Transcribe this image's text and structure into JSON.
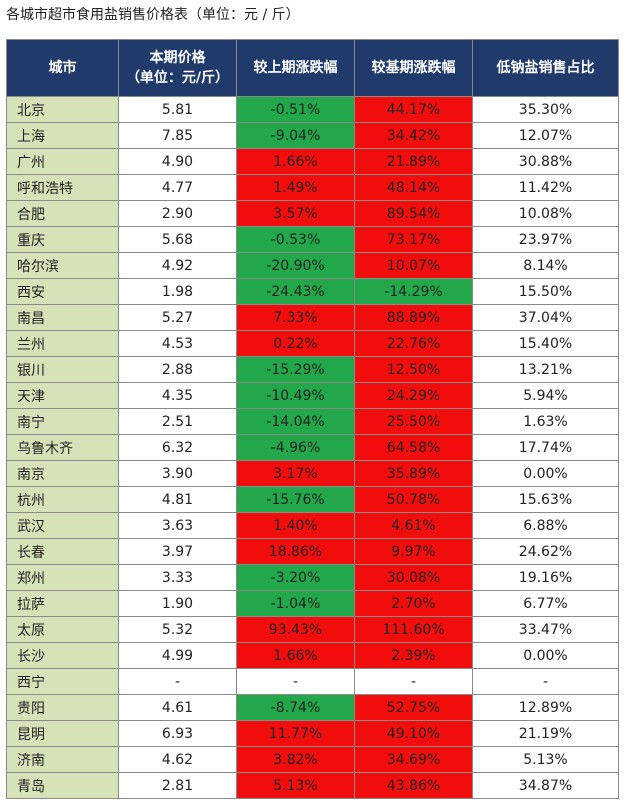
{
  "title": "各城市超市食用盐销售价格表（单位：元 / 斤）",
  "header": {
    "city": "城市",
    "price_line1": "本期价格",
    "price_line2": "（单位：元/斤）",
    "mom": "较上期涨跌幅",
    "yoy": "较基期涨跌幅",
    "lowsodium": "低钠盐销售占比"
  },
  "colors": {
    "header_bg": "#1f3a6b",
    "city_bg": "#d6e3b8",
    "positive": "#f20d0d",
    "negative": "#22a84a",
    "neutral": "#ffffff"
  },
  "rows": [
    {
      "city": "北京",
      "price": "5.81",
      "mom": "-0.51%",
      "yoy": "44.17%",
      "low": "35.30%"
    },
    {
      "city": "上海",
      "price": "7.85",
      "mom": "-9.04%",
      "yoy": "34.42%",
      "low": "12.07%"
    },
    {
      "city": "广州",
      "price": "4.90",
      "mom": "1.66%",
      "yoy": "21.89%",
      "low": "30.88%"
    },
    {
      "city": "呼和浩特",
      "price": "4.77",
      "mom": "1.49%",
      "yoy": "48.14%",
      "low": "11.42%"
    },
    {
      "city": "合肥",
      "price": "2.90",
      "mom": "3.57%",
      "yoy": "89.54%",
      "low": "10.08%"
    },
    {
      "city": "重庆",
      "price": "5.68",
      "mom": "-0.53%",
      "yoy": "73.17%",
      "low": "23.97%"
    },
    {
      "city": "哈尔滨",
      "price": "4.92",
      "mom": "-20.90%",
      "yoy": "10.07%",
      "low": "8.14%"
    },
    {
      "city": "西安",
      "price": "1.98",
      "mom": "-24.43%",
      "yoy": "-14.29%",
      "low": "15.50%"
    },
    {
      "city": "南昌",
      "price": "5.27",
      "mom": "7.33%",
      "yoy": "88.89%",
      "low": "37.04%"
    },
    {
      "city": "兰州",
      "price": "4.53",
      "mom": "0.22%",
      "yoy": "22.76%",
      "low": "15.40%"
    },
    {
      "city": "银川",
      "price": "2.88",
      "mom": "-15.29%",
      "yoy": "12.50%",
      "low": "13.21%"
    },
    {
      "city": "天津",
      "price": "4.35",
      "mom": "-10.49%",
      "yoy": "24.29%",
      "low": "5.94%"
    },
    {
      "city": "南宁",
      "price": "2.51",
      "mom": "-14.04%",
      "yoy": "25.50%",
      "low": "1.63%"
    },
    {
      "city": "乌鲁木齐",
      "price": "6.32",
      "mom": "-4.96%",
      "yoy": "64.58%",
      "low": "17.74%"
    },
    {
      "city": "南京",
      "price": "3.90",
      "mom": "3.17%",
      "yoy": "35.89%",
      "low": "0.00%"
    },
    {
      "city": "杭州",
      "price": "4.81",
      "mom": "-15.76%",
      "yoy": "50.78%",
      "low": "15.63%"
    },
    {
      "city": "武汉",
      "price": "3.63",
      "mom": "1.40%",
      "yoy": "4.61%",
      "low": "6.88%"
    },
    {
      "city": "长春",
      "price": "3.97",
      "mom": "18.86%",
      "yoy": "9.97%",
      "low": "24.62%"
    },
    {
      "city": "郑州",
      "price": "3.33",
      "mom": "-3.20%",
      "yoy": "30.08%",
      "low": "19.16%"
    },
    {
      "city": "拉萨",
      "price": "1.90",
      "mom": "-1.04%",
      "yoy": "2.70%",
      "low": "6.77%"
    },
    {
      "city": "太原",
      "price": "5.32",
      "mom": "93.43%",
      "yoy": "111.60%",
      "low": "33.47%"
    },
    {
      "city": "长沙",
      "price": "4.99",
      "mom": "1.66%",
      "yoy": "2.39%",
      "low": "0.00%"
    },
    {
      "city": "西宁",
      "price": "-",
      "mom": "-",
      "yoy": "-",
      "low": "-"
    },
    {
      "city": "贵阳",
      "price": "4.61",
      "mom": "-8.74%",
      "yoy": "52.75%",
      "low": "12.89%"
    },
    {
      "city": "昆明",
      "price": "6.93",
      "mom": "11.77%",
      "yoy": "49.10%",
      "low": "21.19%"
    },
    {
      "city": "济南",
      "price": "4.62",
      "mom": "3.82%",
      "yoy": "34.69%",
      "low": "5.13%"
    },
    {
      "city": "青岛",
      "price": "2.81",
      "mom": "5.13%",
      "yoy": "43.86%",
      "low": "34.87%"
    }
  ]
}
